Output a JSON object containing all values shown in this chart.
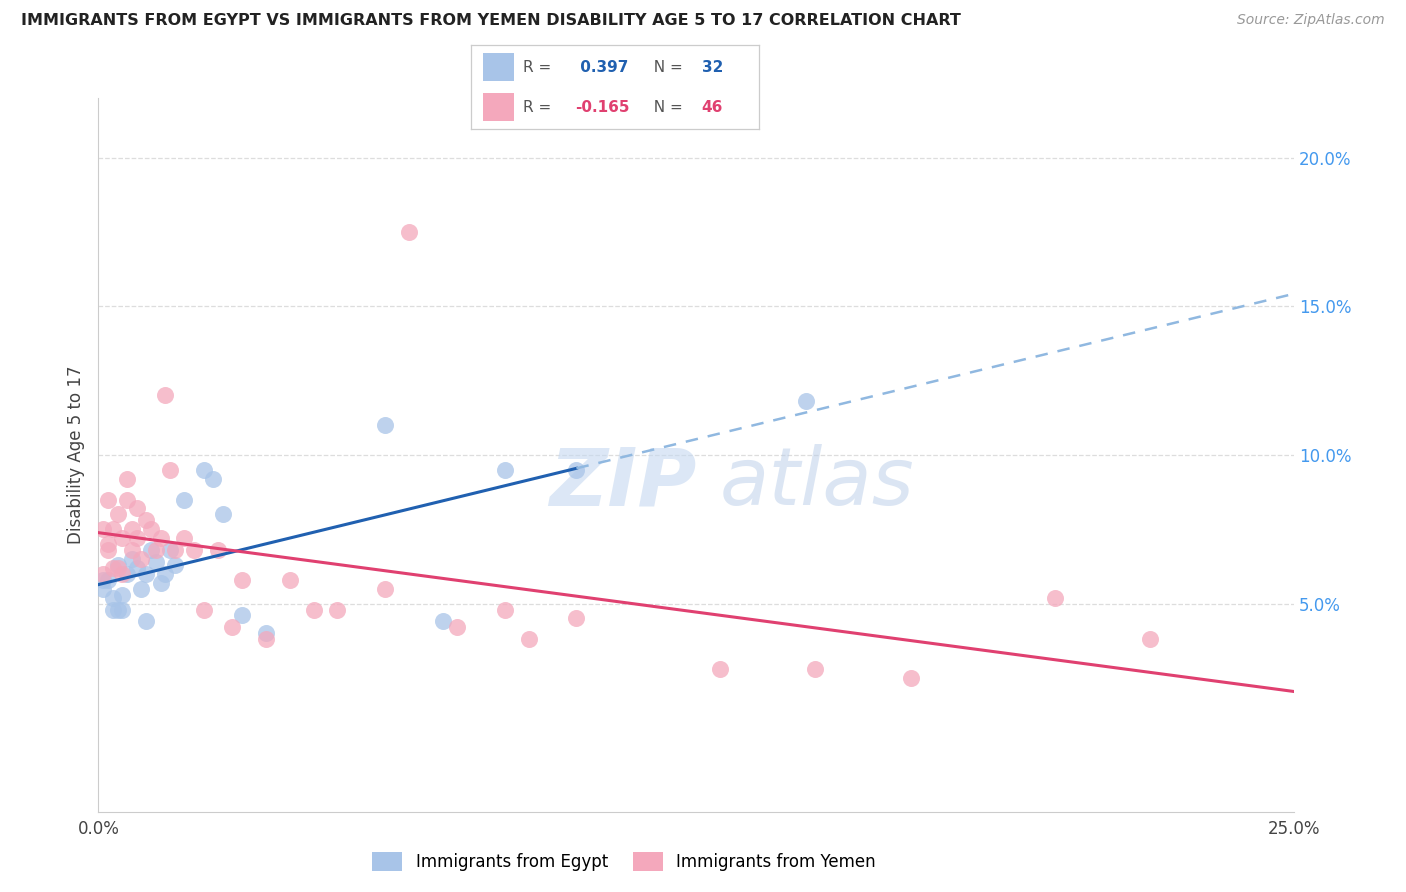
{
  "title": "IMMIGRANTS FROM EGYPT VS IMMIGRANTS FROM YEMEN DISABILITY AGE 5 TO 17 CORRELATION CHART",
  "source": "Source: ZipAtlas.com",
  "ylabel": "Disability Age 5 to 17",
  "xlim": [
    0.0,
    0.25
  ],
  "ylim": [
    -0.02,
    0.22
  ],
  "R_egypt": 0.397,
  "N_egypt": 32,
  "R_yemen": -0.165,
  "N_yemen": 46,
  "egypt_color": "#a8c4e8",
  "yemen_color": "#f4a8bc",
  "egypt_line_color": "#2060b0",
  "yemen_line_color": "#e04070",
  "egypt_dashed_color": "#90b8e0",
  "right_axis_color": "#4499ee",
  "egypt_x": [
    0.001,
    0.001,
    0.002,
    0.003,
    0.003,
    0.004,
    0.004,
    0.005,
    0.005,
    0.006,
    0.007,
    0.008,
    0.009,
    0.01,
    0.01,
    0.011,
    0.012,
    0.013,
    0.014,
    0.015,
    0.016,
    0.018,
    0.022,
    0.024,
    0.026,
    0.03,
    0.035,
    0.06,
    0.072,
    0.085,
    0.1,
    0.148
  ],
  "egypt_y": [
    0.058,
    0.055,
    0.058,
    0.052,
    0.048,
    0.048,
    0.063,
    0.053,
    0.048,
    0.06,
    0.065,
    0.062,
    0.055,
    0.06,
    0.044,
    0.068,
    0.064,
    0.057,
    0.06,
    0.068,
    0.063,
    0.085,
    0.095,
    0.092,
    0.08,
    0.046,
    0.04,
    0.11,
    0.044,
    0.095,
    0.095,
    0.118
  ],
  "yemen_x": [
    0.001,
    0.001,
    0.002,
    0.002,
    0.002,
    0.003,
    0.003,
    0.004,
    0.004,
    0.005,
    0.005,
    0.006,
    0.006,
    0.007,
    0.007,
    0.008,
    0.008,
    0.009,
    0.01,
    0.011,
    0.012,
    0.013,
    0.014,
    0.015,
    0.016,
    0.018,
    0.02,
    0.022,
    0.025,
    0.028,
    0.03,
    0.035,
    0.04,
    0.045,
    0.05,
    0.06,
    0.065,
    0.075,
    0.085,
    0.09,
    0.1,
    0.13,
    0.15,
    0.17,
    0.2,
    0.22
  ],
  "yemen_y": [
    0.06,
    0.075,
    0.07,
    0.068,
    0.085,
    0.062,
    0.075,
    0.062,
    0.08,
    0.06,
    0.072,
    0.085,
    0.092,
    0.068,
    0.075,
    0.072,
    0.082,
    0.065,
    0.078,
    0.075,
    0.068,
    0.072,
    0.12,
    0.095,
    0.068,
    0.072,
    0.068,
    0.048,
    0.068,
    0.042,
    0.058,
    0.038,
    0.058,
    0.048,
    0.048,
    0.055,
    0.175,
    0.042,
    0.048,
    0.038,
    0.045,
    0.028,
    0.028,
    0.025,
    0.052,
    0.038
  ],
  "yticks_right": [
    0.05,
    0.1,
    0.15,
    0.2
  ],
  "ytick_labels_right": [
    "5.0%",
    "10.0%",
    "15.0%",
    "20.0%"
  ],
  "xticks": [
    0.0,
    0.05,
    0.1,
    0.15,
    0.2,
    0.25
  ],
  "xtick_labels": [
    "0.0%",
    "",
    "",
    "",
    "",
    "25.0%"
  ],
  "grid_color": "#dddddd",
  "spine_color": "#cccccc"
}
